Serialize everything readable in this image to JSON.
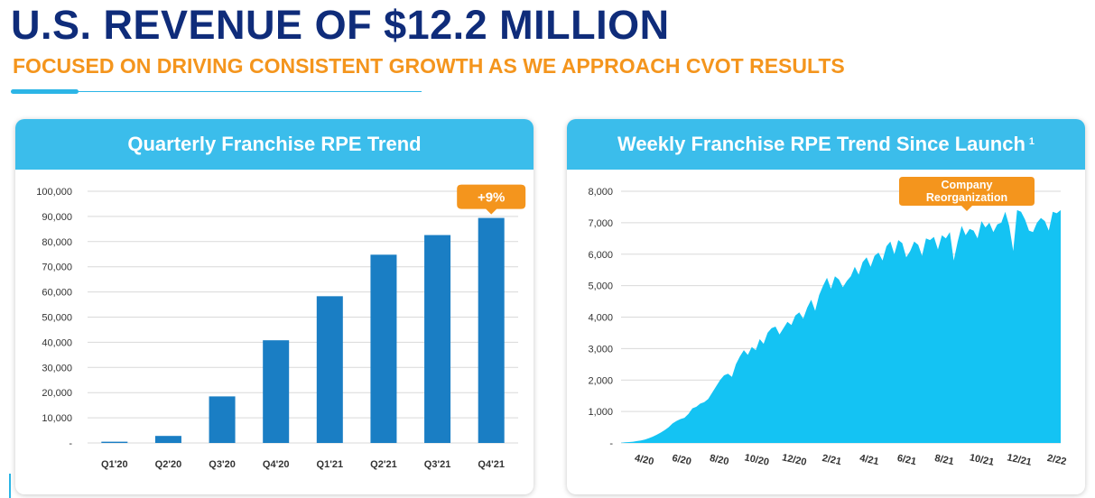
{
  "header": {
    "title": "U.S. REVENUE OF $12.2 MILLION",
    "subtitle": "FOCUSED ON DRIVING CONSISTENT GROWTH AS WE APPROACH CVOT RESULTS"
  },
  "colors": {
    "title": "#0f2c7a",
    "accent_orange": "#f4951d",
    "header_blue": "#3bbdeb",
    "bar_blue": "#1a7ec4",
    "area_cyan": "#14c3f3"
  },
  "chart_data": [
    {
      "type": "bar",
      "title": "Quarterly Franchise RPE Trend",
      "categories": [
        "Q1'20",
        "Q2'20",
        "Q3'20",
        "Q4'20",
        "Q1'21",
        "Q2'21",
        "Q3'21",
        "Q4'21"
      ],
      "values": [
        500,
        2800,
        18500,
        40800,
        58300,
        74800,
        82600,
        89400
      ],
      "ylim": [
        0,
        100000
      ],
      "yticks": [
        "-",
        "10,000",
        "20,000",
        "30,000",
        "40,000",
        "50,000",
        "60,000",
        "70,000",
        "80,000",
        "90,000",
        "100,000"
      ],
      "grid": true,
      "annotation": {
        "text": "+9%",
        "category": "Q4'21"
      }
    },
    {
      "type": "area",
      "title": "Weekly Franchise RPE Trend Since Launch",
      "title_footnote": "1",
      "ylim": [
        0,
        8000
      ],
      "yticks": [
        "-",
        "1,000",
        "2,000",
        "3,000",
        "4,000",
        "5,000",
        "6,000",
        "7,000",
        "8,000"
      ],
      "xticks": [
        "4/20",
        "6/20",
        "8/20",
        "10/20",
        "12/20",
        "2/21",
        "4/21",
        "6/21",
        "8/21",
        "10/21",
        "12/21",
        "2/22"
      ],
      "grid": true,
      "annotation": {
        "text_lines": [
          "Company",
          "Reorganization"
        ]
      },
      "values": [
        10,
        20,
        30,
        40,
        60,
        80,
        110,
        150,
        200,
        260,
        330,
        410,
        500,
        620,
        700,
        760,
        800,
        920,
        1100,
        1150,
        1250,
        1300,
        1400,
        1600,
        1800,
        2000,
        2150,
        2200,
        2100,
        2500,
        2750,
        2950,
        2800,
        3050,
        2950,
        3300,
        3150,
        3500,
        3650,
        3700,
        3450,
        3650,
        3850,
        3750,
        4050,
        4150,
        3950,
        4300,
        4550,
        4200,
        4700,
        5000,
        5250,
        4900,
        5300,
        5200,
        4950,
        5150,
        5300,
        5600,
        5350,
        5750,
        5900,
        5600,
        5950,
        6050,
        5800,
        6250,
        6400,
        6000,
        6450,
        6350,
        5900,
        6100,
        6400,
        6300,
        5950,
        6500,
        6450,
        6550,
        6150,
        6600,
        6500,
        6700,
        5800,
        6400,
        6900,
        6600,
        6800,
        6750,
        6500,
        7050,
        6850,
        7000,
        6700,
        6950,
        7000,
        7350,
        6900,
        6100,
        7400,
        7350,
        7100,
        6750,
        6700,
        7000,
        7150,
        7050,
        6750,
        7350,
        7300,
        7400
      ]
    }
  ]
}
